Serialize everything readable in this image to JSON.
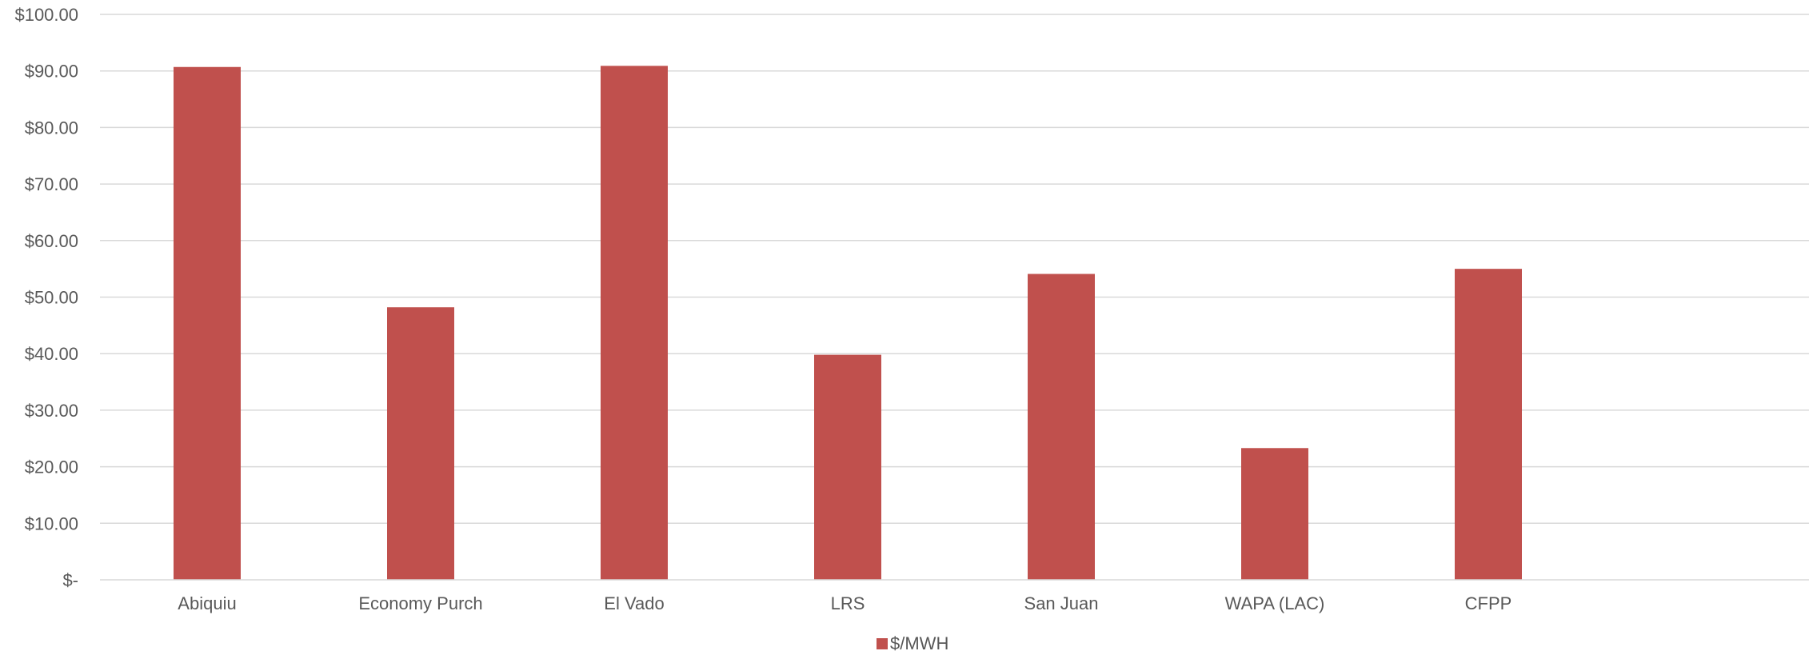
{
  "chart_data": {
    "type": "bar",
    "categories": [
      "Abiquiu",
      "Economy Purch",
      "El Vado",
      "LRS",
      "San Juan",
      "WAPA (LAC)",
      "CFPP"
    ],
    "series": [
      {
        "name": "$/MWH",
        "values": [
          90.7,
          48.2,
          90.9,
          39.8,
          54.1,
          23.3,
          55.0
        ],
        "color": "#C0504D"
      }
    ],
    "ylim": [
      0,
      100
    ],
    "yticks": [
      0,
      10,
      20,
      30,
      40,
      50,
      60,
      70,
      80,
      90,
      100
    ],
    "ytick_labels": [
      "$-",
      "$10.00",
      "$20.00",
      "$30.00",
      "$40.00",
      "$50.00",
      "$60.00",
      "$70.00",
      "$80.00",
      "$90.00",
      "$100.00"
    ],
    "title": "",
    "xlabel": "",
    "ylabel": "",
    "grid": true,
    "legend_position": "bottom"
  }
}
